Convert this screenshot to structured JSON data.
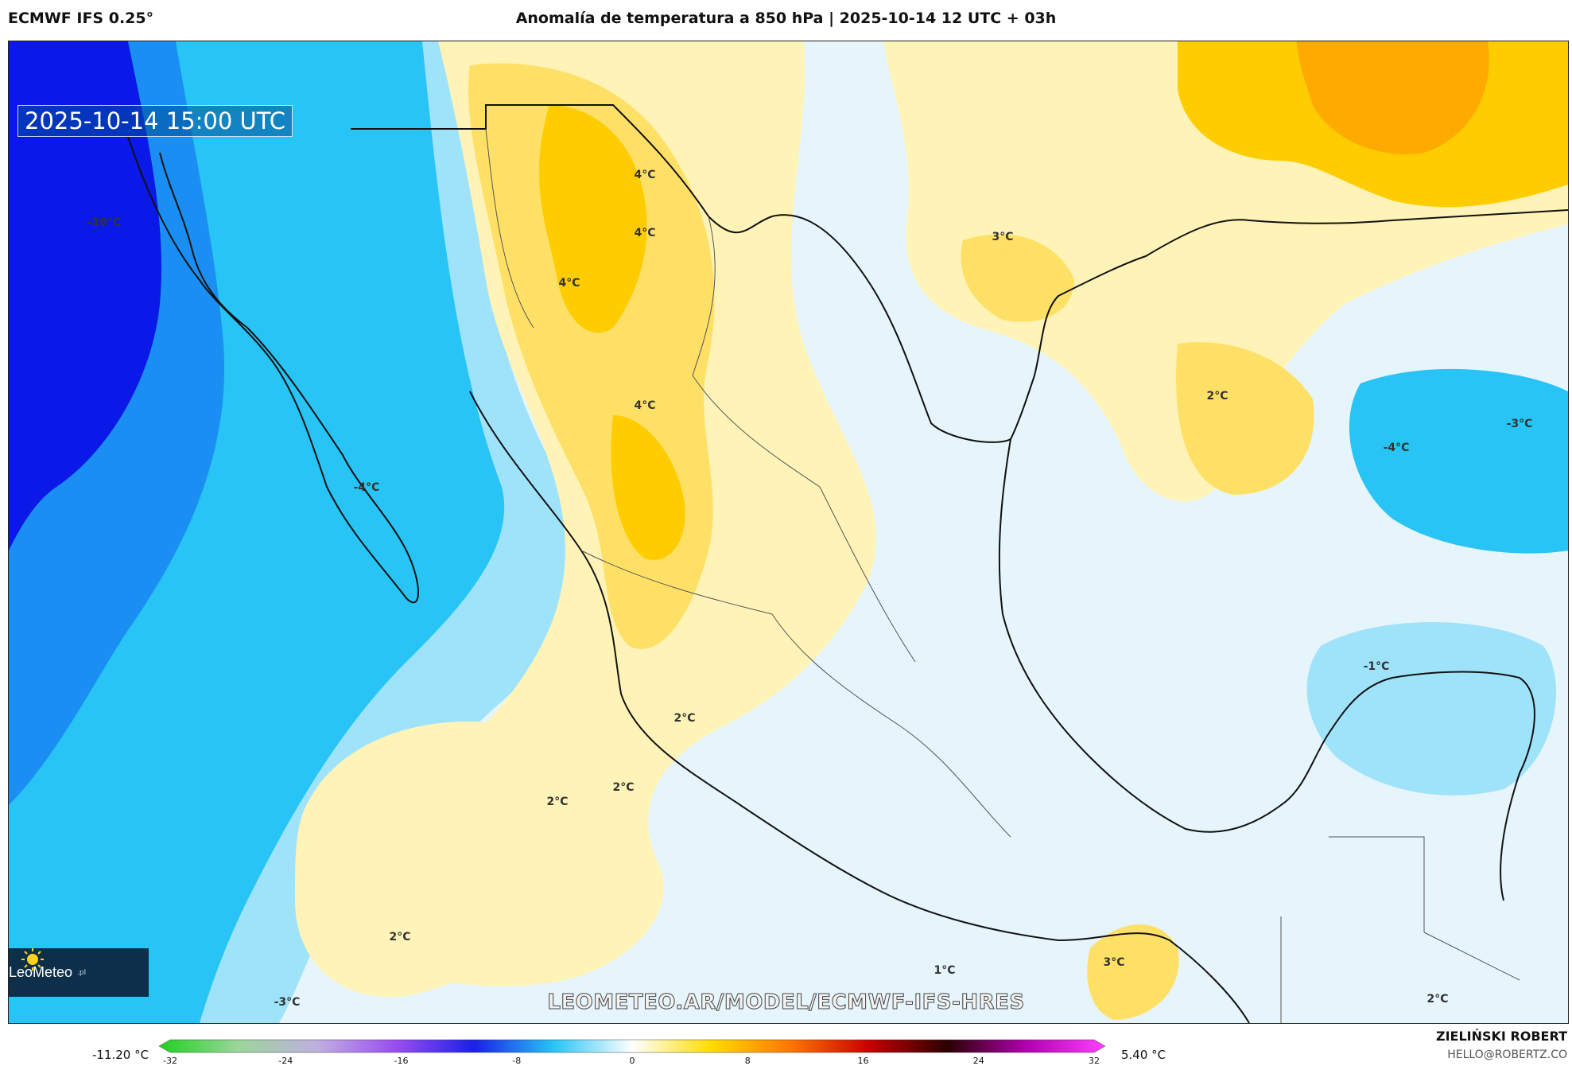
{
  "header": {
    "model": "ECMWF IFS 0.25°",
    "title": "Anomalía de temperatura a 850 hPa | 2025-10-14 12 UTC + 03h"
  },
  "map": {
    "valid_time": "2025-10-14 15:00 UTC",
    "contour_labels": [
      "-10°C",
      "4°C",
      "4°C",
      "4°C",
      "4°C",
      "3°C",
      "2°C",
      "-4°C",
      "-3°C",
      "-4°C",
      "-1°C",
      "2°C",
      "2°C",
      "2°C",
      "2°C",
      "1°C",
      "3°C",
      "-3°C",
      "2°C"
    ],
    "colors": {
      "cold_deep": "#0a18e8",
      "cold_mid": "#1a6cf0",
      "cold": "#27c4f5",
      "cool": "#9fe3fa",
      "cool_light": "#e6f4fc",
      "warm_light": "#fff3b8",
      "warm": "#ffe066",
      "warm_mid": "#ffcc00",
      "warm_strong": "#ffaa00"
    }
  },
  "logo": {
    "name": "LeoMeteo",
    "suffix": ".pl"
  },
  "source_url": "LEOMETEO.AR/MODEL/ECMWF-IFS-HRES",
  "legend": {
    "min_label": "-11.20 °C",
    "max_label": "5.40 °C",
    "ticks": [
      "-32",
      "-24",
      "-16",
      "-8",
      "0",
      "8",
      "16",
      "24",
      "32"
    ],
    "stops": [
      "#1fd11f",
      "#9ad69a",
      "#c0b0e0",
      "#9a4df0",
      "#1a20e8",
      "#27c4f5",
      "#ffffff",
      "#ffdd00",
      "#ff7700",
      "#c80000",
      "#2a0000",
      "#b000b0",
      "#ff40ff"
    ]
  },
  "author": {
    "name": "ZIELIŃSKI ROBERT",
    "email": "HELLO@ROBERTZ.CO"
  }
}
